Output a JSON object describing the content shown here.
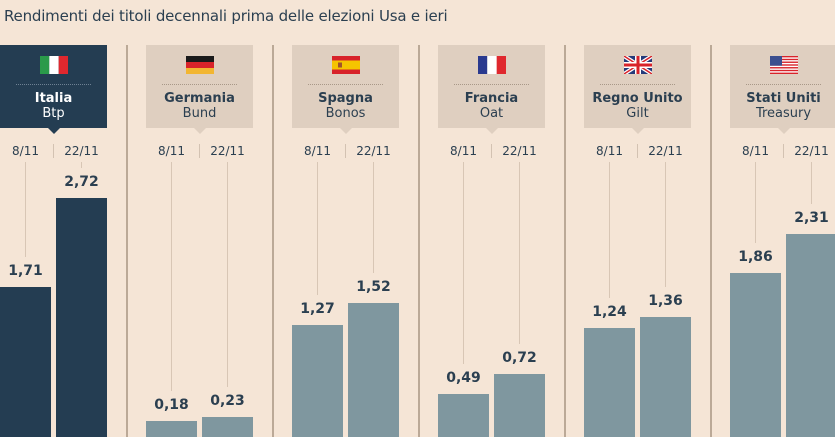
{
  "title": "Rendimenti dei titoli decennali prima delle elezioni Usa e ieri",
  "chart_data": {
    "type": "bar",
    "title": "Rendimenti dei titoli decennali prima delle elezioni Usa e ieri",
    "categories": [
      "8/11",
      "22/11"
    ],
    "groups": [
      {
        "country": "Italia",
        "bond": "Btp",
        "flag": "italy-flag",
        "highlight": true,
        "values": [
          "1,71",
          "2,72"
        ]
      },
      {
        "country": "Germania",
        "bond": "Bund",
        "flag": "germany-flag",
        "highlight": false,
        "values": [
          "0,18",
          "0,23"
        ]
      },
      {
        "country": "Spagna",
        "bond": "Bonos",
        "flag": "spain-flag",
        "highlight": false,
        "values": [
          "1,27",
          "1,52"
        ]
      },
      {
        "country": "Francia",
        "bond": "Oat",
        "flag": "france-flag",
        "highlight": false,
        "values": [
          "0,49",
          "0,72"
        ]
      },
      {
        "country": "Regno Unito",
        "bond": "Gilt",
        "flag": "uk-flag",
        "highlight": false,
        "values": [
          "1,24",
          "1,36"
        ]
      },
      {
        "country": "Stati Uniti",
        "bond": "Treasury",
        "flag": "usa-flag",
        "highlight": false,
        "values": [
          "1,86",
          "2,31"
        ]
      }
    ],
    "colors": {
      "highlight": "#243d52",
      "bar": "#7f979f",
      "header": "#dfcfc0",
      "background": "#f5e5d6"
    }
  }
}
